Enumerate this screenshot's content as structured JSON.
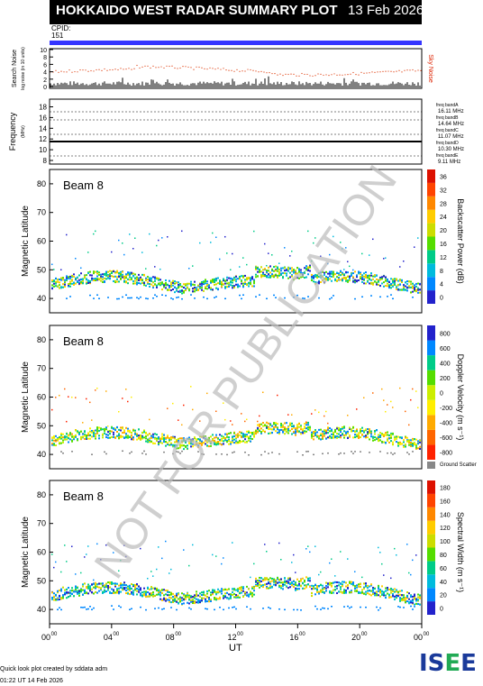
{
  "header": {
    "title": "HOKKAIDO WEST RADAR SUMMARY PLOT",
    "date": "13 Feb 2026",
    "cpid_label": "CPID:",
    "cpid_value": "151"
  },
  "noise_panel": {
    "ylabel": "Search Noise",
    "ylabel_sub": "log noise (in 10 units)",
    "sky_label": "Sky Noise",
    "ticks": [
      "0",
      "2",
      "4",
      "6",
      "8",
      "10"
    ]
  },
  "freq_panel": {
    "ylabel": "Frequency",
    "unit": "(MHz)",
    "ticks": [
      "8",
      "10",
      "12",
      "14",
      "16",
      "18"
    ],
    "bands": [
      {
        "name": "freq bandA",
        "value": "16.11 MHz"
      },
      {
        "name": "freq bandB",
        "value": "14.64 MHz"
      },
      {
        "name": "freq bandC",
        "value": "11.07 MHz"
      },
      {
        "name": "freq bandD",
        "value": "10.30 MHz"
      },
      {
        "name": "freq bandE",
        "value": "9.11 MHz"
      }
    ]
  },
  "chart_data": [
    {
      "type": "heatmap",
      "panel": "Backscatter Power",
      "beam_label": "Beam  8",
      "ylabel": "Magnetic Latitude",
      "cbar_label": "Backscatter Power (dB)",
      "cbar_ticks": [
        "0",
        "4",
        "8",
        "12",
        "16",
        "20",
        "24",
        "28",
        "32",
        "36"
      ],
      "cbar_colors": [
        "#2222cc",
        "#0088ff",
        "#00bbdd",
        "#00cc88",
        "#55dd00",
        "#ccdd00",
        "#ffcc00",
        "#ff8800",
        "#ff4400",
        "#dd1100"
      ],
      "ylim": [
        35,
        85
      ],
      "y_ticks": [
        "40",
        "50",
        "60",
        "70",
        "80"
      ]
    },
    {
      "type": "heatmap",
      "panel": "Doppler Velocity",
      "beam_label": "Beam  8",
      "ylabel": "Magnetic Latitude",
      "cbar_label": "Doppler Velocity (m s⁻¹)",
      "cbar_ticks": [
        "-800",
        "-600",
        "-400",
        "-200",
        "0",
        "200",
        "400",
        "600",
        "800"
      ],
      "cbar_colors": [
        "#ff2200",
        "#ff6600",
        "#ffaa00",
        "#ffee00",
        "#ccee00",
        "#55dd00",
        "#00cc88",
        "#0088ff",
        "#2222cc"
      ],
      "ground_scatter_label": "Ground Scatter",
      "ylim": [
        35,
        85
      ],
      "y_ticks": [
        "40",
        "50",
        "60",
        "70",
        "80"
      ]
    },
    {
      "type": "heatmap",
      "panel": "Spectral Width",
      "beam_label": "Beam  8",
      "ylabel": "Magnetic Latitude",
      "cbar_label": "Spectral Width (m s⁻¹)",
      "cbar_ticks": [
        "0",
        "20",
        "40",
        "60",
        "80",
        "100",
        "120",
        "140",
        "160",
        "180"
      ],
      "cbar_colors": [
        "#2222cc",
        "#0088ff",
        "#00bbdd",
        "#00cc88",
        "#55dd00",
        "#ccdd00",
        "#ffcc00",
        "#ff8800",
        "#ff4400",
        "#dd1100"
      ],
      "ylim": [
        35,
        85
      ],
      "y_ticks": [
        "40",
        "50",
        "60",
        "70",
        "80"
      ]
    }
  ],
  "x_axis": {
    "label": "UT",
    "ticks": [
      "00",
      "04",
      "08",
      "12",
      "16",
      "20",
      "00"
    ],
    "tick_sup": "00"
  },
  "watermark": "NOT FOR PUBLICATION",
  "footer": {
    "line1": "Quick look plot created by sddata adm",
    "line2": "01:22 UT 14 Feb 2026"
  },
  "logo": "ISEE"
}
